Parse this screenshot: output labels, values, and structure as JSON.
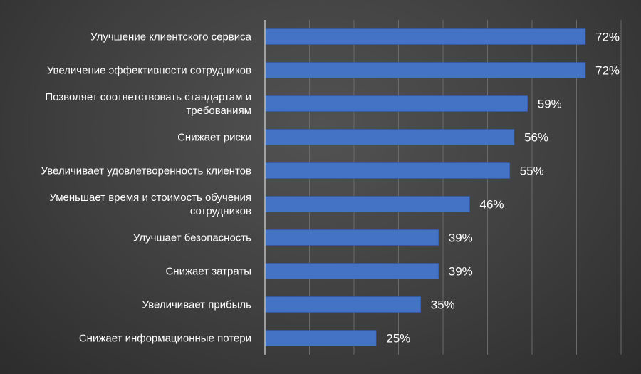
{
  "chart_data": {
    "type": "bar",
    "orientation": "horizontal",
    "categories": [
      [
        "Улучшение клиентского сервиса"
      ],
      [
        "Увеличение эффективности сотрудников"
      ],
      [
        "Позволяет соответствовать стандартам и",
        "требованиям"
      ],
      [
        "Снижает риски"
      ],
      [
        "Увеличивает удовлетворенность клиентов"
      ],
      [
        "Уменьшает время и стоимость обучения",
        "сотрудников"
      ],
      [
        "Улучшает безопасность"
      ],
      [
        "Снижает затраты"
      ],
      [
        "Увеличивает прибыль"
      ],
      [
        "Снижает информационные потери"
      ]
    ],
    "values": [
      72,
      72,
      59,
      56,
      55,
      46,
      39,
      39,
      35,
      25
    ],
    "data_labels": [
      "72%",
      "72%",
      "59%",
      "56%",
      "55%",
      "46%",
      "39%",
      "39%",
      "35%",
      "25%"
    ],
    "xlim": [
      0,
      80
    ],
    "grid": true,
    "colors": {
      "bar": "#4472c4",
      "bar_edge": "#2f57a8"
    }
  }
}
